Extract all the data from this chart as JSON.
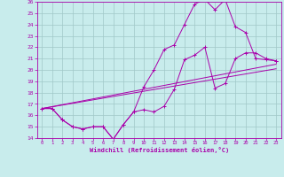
{
  "xlabel": "Windchill (Refroidissement éolien,°C)",
  "xlim": [
    -0.5,
    23.5
  ],
  "ylim": [
    14,
    26
  ],
  "yticks": [
    14,
    15,
    16,
    17,
    18,
    19,
    20,
    21,
    22,
    23,
    24,
    25,
    26
  ],
  "xticks": [
    0,
    1,
    2,
    3,
    4,
    5,
    6,
    7,
    8,
    9,
    10,
    11,
    12,
    13,
    14,
    15,
    16,
    17,
    18,
    19,
    20,
    21,
    22,
    23
  ],
  "bg_color": "#c8ecec",
  "grid_color": "#a0c8c8",
  "line_color": "#aa00aa",
  "line1_x": [
    0,
    1,
    2,
    3,
    4,
    5,
    6,
    7,
    8,
    9,
    10,
    11,
    12,
    13,
    14,
    15,
    16,
    17,
    18,
    19,
    20,
    21,
    22,
    23
  ],
  "line1_y": [
    16.6,
    16.6,
    15.6,
    15.0,
    14.8,
    15.0,
    15.0,
    13.9,
    15.2,
    16.3,
    16.5,
    16.3,
    16.8,
    18.3,
    20.9,
    21.3,
    22.0,
    18.4,
    18.8,
    21.0,
    21.5,
    21.5,
    21.0,
    20.8
  ],
  "line2_x": [
    0,
    1,
    2,
    3,
    4,
    5,
    6,
    7,
    8,
    9,
    10,
    11,
    12,
    13,
    14,
    15,
    16,
    17,
    18,
    19,
    20,
    21,
    22,
    23
  ],
  "line2_y": [
    16.6,
    16.6,
    15.6,
    15.0,
    14.8,
    15.0,
    15.0,
    13.9,
    15.2,
    16.3,
    18.5,
    20.0,
    21.8,
    22.2,
    24.0,
    25.8,
    26.2,
    25.3,
    26.2,
    23.8,
    23.3,
    21.0,
    20.9,
    20.8
  ],
  "line3_x": [
    0,
    23
  ],
  "line3_y": [
    16.6,
    20.5
  ],
  "line4_x": [
    0,
    23
  ],
  "line4_y": [
    16.6,
    20.1
  ]
}
